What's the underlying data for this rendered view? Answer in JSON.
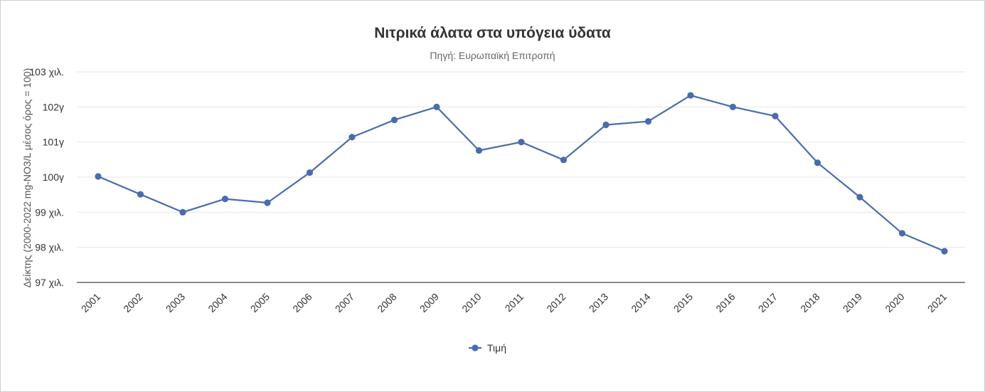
{
  "chart_data": {
    "type": "line",
    "title": "Νιτρικά άλατα στα υπόγεια ύδατα",
    "subtitle": "Πηγή: Ευρωπαϊκή Επιτροπή",
    "ylabel": "Δείκτης (2000-2022 mg-NO3/L μέσος όρος = 100)",
    "xlabel": "",
    "ylim": [
      97,
      103
    ],
    "y_ticks": [
      {
        "value": 103,
        "label": "103 χιλ."
      },
      {
        "value": 102,
        "label": "102γ"
      },
      {
        "value": 101,
        "label": "101γ"
      },
      {
        "value": 100,
        "label": "100γ"
      },
      {
        "value": 99,
        "label": "99 χιλ."
      },
      {
        "value": 98,
        "label": "98 χιλ."
      },
      {
        "value": 97,
        "label": "97 χιλ."
      }
    ],
    "categories": [
      "2001",
      "2002",
      "2003",
      "2004",
      "2005",
      "2006",
      "2007",
      "2008",
      "2009",
      "2010",
      "2011",
      "2012",
      "2013",
      "2014",
      "2015",
      "2016",
      "2017",
      "2018",
      "2019",
      "2020",
      "2021"
    ],
    "series": [
      {
        "name": "Τιμή",
        "color": "#4a6cad",
        "values": [
          100.02,
          99.51,
          99.0,
          99.38,
          99.27,
          100.13,
          101.14,
          101.63,
          102.0,
          100.76,
          101.0,
          100.49,
          101.49,
          101.59,
          102.33,
          102.0,
          101.74,
          100.41,
          99.43,
          98.4,
          97.89
        ]
      }
    ],
    "grid": true,
    "legend_position": "bottom-center"
  }
}
